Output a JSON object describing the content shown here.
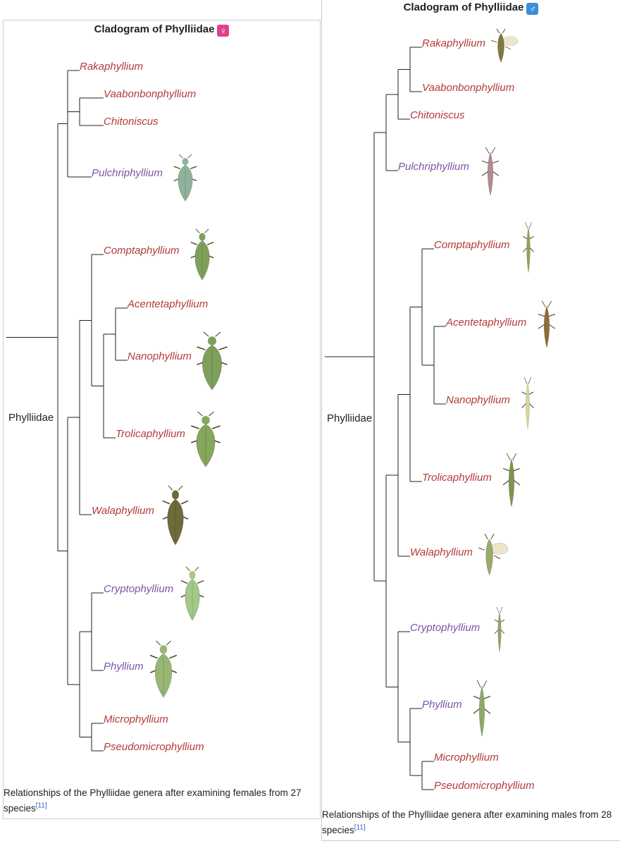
{
  "colors": {
    "red_genus": "#b33a3a",
    "purple_genus": "#7b55a6",
    "insect_green": "#7fa05a",
    "insect_dark": "#6f6a3a",
    "insect_pink": "#b58a8c",
    "insect_pale": "#d8d39a"
  },
  "female": {
    "title": "Cladogram of Phylliidae",
    "symbol": "♀",
    "root_label": "Phylliidae",
    "caption": "Relationships of the Phylliidae genera after examining females from 27 species",
    "ref": "[11]",
    "genera": [
      {
        "name": "Rakaphyllium",
        "color": "red"
      },
      {
        "name": "Vaabonbonphyllium",
        "color": "red"
      },
      {
        "name": "Chitoniscus",
        "color": "red"
      },
      {
        "name": "Pulchriphyllium",
        "color": "purple",
        "insect": "leaf-insect-green-icon"
      },
      {
        "name": "Comptaphyllium",
        "color": "red",
        "insect": "leaf-insect-green-icon"
      },
      {
        "name": "Acentetaphyllium",
        "color": "red"
      },
      {
        "name": "Nanophyllium",
        "color": "red",
        "insect": "leaf-insect-green-icon"
      },
      {
        "name": "Trolicaphyllium",
        "color": "red",
        "insect": "leaf-insect-green-icon"
      },
      {
        "name": "Walaphyllium",
        "color": "red",
        "insect": "leaf-insect-brown-icon"
      },
      {
        "name": "Cryptophyllium",
        "color": "purple",
        "insect": "leaf-insect-green-icon"
      },
      {
        "name": "Phyllium",
        "color": "purple",
        "insect": "leaf-insect-green-icon"
      },
      {
        "name": "Microphyllium",
        "color": "red"
      },
      {
        "name": "Pseudomicrophyllium",
        "color": "red"
      }
    ]
  },
  "male": {
    "title": "Cladogram of Phylliidae",
    "symbol": "♂",
    "root_label": "Phylliidae",
    "caption": "Relationships of the Phylliidae genera after examining males from 28 species",
    "ref": "[11]",
    "genera": [
      {
        "name": "Rakaphyllium",
        "color": "red",
        "insect": "winged-male-insect-icon"
      },
      {
        "name": "Vaabonbonphyllium",
        "color": "red"
      },
      {
        "name": "Chitoniscus",
        "color": "red"
      },
      {
        "name": "Pulchriphyllium",
        "color": "purple",
        "insect": "male-insect-pink-icon"
      },
      {
        "name": "Comptaphyllium",
        "color": "red",
        "insect": "male-insect-slender-icon"
      },
      {
        "name": "Acentetaphyllium",
        "color": "red",
        "insect": "male-insect-brown-icon"
      },
      {
        "name": "Nanophyllium",
        "color": "red",
        "insect": "male-insect-pale-icon"
      },
      {
        "name": "Trolicaphyllium",
        "color": "red",
        "insect": "male-insect-slender-icon"
      },
      {
        "name": "Walaphyllium",
        "color": "red",
        "insect": "winged-male-insect-icon"
      },
      {
        "name": "Cryptophyllium",
        "color": "purple",
        "insect": "male-insect-slender-icon"
      },
      {
        "name": "Phyllium",
        "color": "purple",
        "insect": "male-insect-slender-icon"
      },
      {
        "name": "Microphyllium",
        "color": "red"
      },
      {
        "name": "Pseudomicrophyllium",
        "color": "red"
      }
    ]
  }
}
